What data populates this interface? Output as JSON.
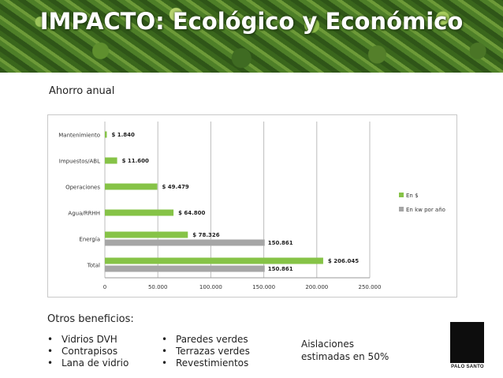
{
  "header": {
    "title": "IMPACTO: Ecológico y Económico"
  },
  "subtitle": "Ahorro anual",
  "chart_data": {
    "type": "bar",
    "orientation": "horizontal",
    "categories": [
      "Mantenimiento",
      "Impuestos/ABL",
      "Operaciones",
      "Agua/RRHH",
      "Energía",
      "Total"
    ],
    "series": [
      {
        "name": "En $",
        "color": "#86c347",
        "values": [
          1840,
          11600,
          49479,
          64800,
          78326,
          206045
        ],
        "labels": [
          "$ 1.840",
          "$ 11.600",
          "$ 49.479",
          "$ 64.800",
          "$ 78.326",
          "$ 206.045"
        ]
      },
      {
        "name": "En kw por año",
        "color": "#a6a6a6",
        "values": [
          null,
          null,
          null,
          null,
          150861,
          150861
        ],
        "labels": [
          "",
          "",
          "",
          "",
          "150.861",
          "150.861"
        ]
      }
    ],
    "xticks": [
      "0",
      "50.000",
      "100.000",
      "150.000",
      "200.000",
      "250.000"
    ],
    "xlim": [
      0,
      250000
    ],
    "grid": true,
    "legend_position": "right"
  },
  "benefits": {
    "title": "Otros beneficios:",
    "col1": [
      "Vidrios DVH",
      "Contrapisos",
      "Lana de vidrio"
    ],
    "col2": [
      "Paredes verdes",
      "Terrazas verdes",
      "Revestimientos"
    ],
    "note_line1": "Aislaciones",
    "note_line2": "estimadas en 50%"
  },
  "logo": {
    "text": "PALO SANTO"
  }
}
